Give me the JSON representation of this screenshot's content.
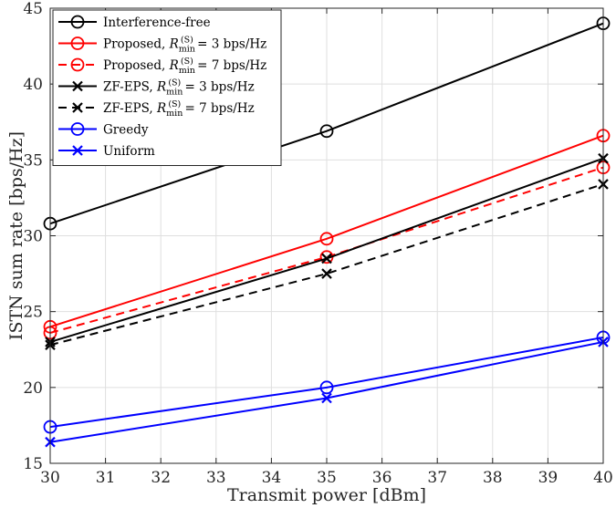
{
  "chart_data": {
    "type": "line",
    "title": "",
    "xlabel": "Transmit power [dBm]",
    "ylabel": "ISTN sum rate [bps/Hz]",
    "xlim": [
      30,
      40
    ],
    "ylim": [
      15,
      45
    ],
    "xticks": [
      30,
      31,
      32,
      33,
      34,
      35,
      36,
      37,
      38,
      39,
      40
    ],
    "yticks": [
      15,
      20,
      25,
      30,
      35,
      40,
      45
    ],
    "x": [
      30,
      35,
      40
    ],
    "grid": true,
    "legend_position": "top-left",
    "series": [
      {
        "name": "Interference-free",
        "legend": {
          "prefix": "Interference-free",
          "sym": "",
          "sub": "",
          "sup": "",
          "suffix": ""
        },
        "values": [
          30.8,
          36.9,
          44.0
        ],
        "color": "#000000",
        "dash": "solid",
        "marker": "circle"
      },
      {
        "name": "Proposed, Rmin(S) = 3 bps/Hz",
        "legend": {
          "prefix": "Proposed, ",
          "sym": "R",
          "sub": "min",
          "sup": "(S)",
          "suffix": " = 3 bps/Hz"
        },
        "values": [
          24.0,
          29.8,
          36.6
        ],
        "color": "#ff0000",
        "dash": "solid",
        "marker": "circle"
      },
      {
        "name": "Proposed, Rmin(S) = 7 bps/Hz",
        "legend": {
          "prefix": "Proposed, ",
          "sym": "R",
          "sub": "min",
          "sup": "(S)",
          "suffix": " = 7 bps/Hz"
        },
        "values": [
          23.6,
          28.6,
          34.5
        ],
        "color": "#ff0000",
        "dash": "dashed",
        "marker": "circle"
      },
      {
        "name": "ZF-EPS, Rmin(S) = 3 bps/Hz",
        "legend": {
          "prefix": "ZF-EPS, ",
          "sym": "R",
          "sub": "min",
          "sup": "(S)",
          "suffix": " = 3 bps/Hz"
        },
        "values": [
          23.0,
          28.5,
          35.1
        ],
        "color": "#000000",
        "dash": "solid",
        "marker": "x"
      },
      {
        "name": "ZF-EPS, Rmin(S) = 7 bps/Hz",
        "legend": {
          "prefix": "ZF-EPS, ",
          "sym": "R",
          "sub": "min",
          "sup": "(S)",
          "suffix": " = 7 bps/Hz"
        },
        "values": [
          22.8,
          27.5,
          33.4
        ],
        "color": "#000000",
        "dash": "dashed",
        "marker": "x"
      },
      {
        "name": "Greedy",
        "legend": {
          "prefix": "Greedy",
          "sym": "",
          "sub": "",
          "sup": "",
          "suffix": ""
        },
        "values": [
          17.4,
          20.0,
          23.3
        ],
        "color": "#0000ff",
        "dash": "solid",
        "marker": "circle"
      },
      {
        "name": "Uniform",
        "legend": {
          "prefix": "Uniform",
          "sym": "",
          "sub": "",
          "sup": "",
          "suffix": ""
        },
        "values": [
          16.4,
          19.3,
          23.0
        ],
        "color": "#0000ff",
        "dash": "solid",
        "marker": "x"
      }
    ]
  }
}
